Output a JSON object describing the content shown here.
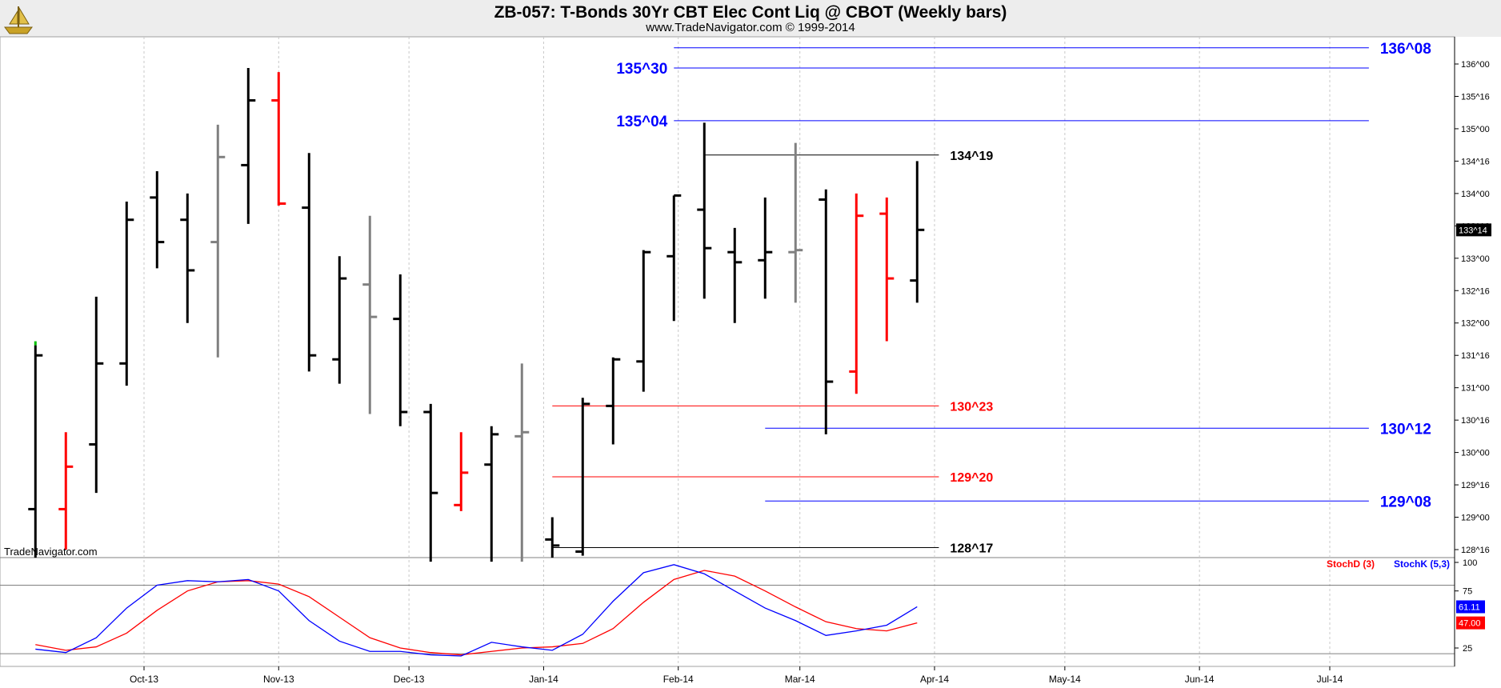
{
  "header": {
    "title": "ZB-057:  T-Bonds 30Yr CBT Elec Cont Liq @ CBOT  (Weekly bars)",
    "subtitle": "www.TradeNavigator.com © 1999-2014",
    "logo_icon": "trade-navigator-ship-icon"
  },
  "watermark": "TradeNavigator.com",
  "chart_data": [
    {
      "type": "ohlc",
      "price_format": "32nds",
      "ylim": [
        128.375,
        136.5
      ],
      "ytick_labels": [
        "128^16",
        "129^00",
        "129^16",
        "130^00",
        "130^16",
        "131^00",
        "131^16",
        "132^00",
        "132^16",
        "133^00",
        "133^16",
        "134^00",
        "134^16",
        "135^00",
        "135^16",
        "136^00"
      ],
      "ytick_values": [
        128.5,
        129.0,
        129.5,
        130.0,
        130.5,
        131.0,
        131.5,
        132.0,
        132.5,
        133.0,
        133.5,
        134.0,
        134.5,
        135.0,
        135.5,
        136.0
      ],
      "last_price_label": "133^14",
      "x_tick_labels": [
        "Oct-13",
        "Nov-13",
        "Dec-13",
        "Jan-14",
        "Feb-14",
        "Mar-14",
        "Apr-14",
        "May-14",
        "Jun-14",
        "Jul-14"
      ],
      "x_tick_dates": [
        "2013-10-01",
        "2013-11-01",
        "2013-12-01",
        "2014-01-01",
        "2014-02-01",
        "2014-03-01",
        "2014-04-01",
        "2014-05-01",
        "2014-06-01",
        "2014-07-01"
      ],
      "bar_color_legend": {
        "up": "#000000",
        "down": "#ff0000",
        "neutral": "#808080"
      },
      "bars": [
        {
          "date": "2013-09-06",
          "open": 129.125,
          "high": 131.656,
          "low": 128.375,
          "close": 131.5,
          "color": "#000000"
        },
        {
          "date": "2013-09-13",
          "open": 129.125,
          "high": 130.313,
          "low": 128.5,
          "close": 129.781,
          "color": "#ff0000"
        },
        {
          "date": "2013-09-20",
          "open": 130.125,
          "high": 132.406,
          "low": 129.375,
          "close": 131.375,
          "color": "#000000"
        },
        {
          "date": "2013-09-27",
          "open": 131.375,
          "high": 133.875,
          "low": 131.031,
          "close": 133.594,
          "color": "#000000"
        },
        {
          "date": "2013-10-04",
          "open": 133.938,
          "high": 134.344,
          "low": 132.844,
          "close": 133.25,
          "color": "#000000"
        },
        {
          "date": "2013-10-11",
          "open": 133.594,
          "high": 134.0,
          "low": 132.0,
          "close": 132.813,
          "color": "#000000"
        },
        {
          "date": "2013-10-18",
          "open": 133.25,
          "high": 135.063,
          "low": 131.469,
          "close": 134.563,
          "color": "#808080"
        },
        {
          "date": "2013-10-25",
          "open": 134.438,
          "high": 135.938,
          "low": 133.531,
          "close": 135.438,
          "color": "#000000"
        },
        {
          "date": "2013-11-01",
          "open": 135.438,
          "high": 135.875,
          "low": 133.813,
          "close": 133.844,
          "color": "#ff0000"
        },
        {
          "date": "2013-11-08",
          "open": 133.781,
          "high": 134.625,
          "low": 131.25,
          "close": 131.5,
          "color": "#000000"
        },
        {
          "date": "2013-11-15",
          "open": 131.438,
          "high": 133.031,
          "low": 131.063,
          "close": 132.688,
          "color": "#000000"
        },
        {
          "date": "2013-11-22",
          "open": 132.594,
          "high": 133.656,
          "low": 130.594,
          "close": 132.094,
          "color": "#808080"
        },
        {
          "date": "2013-11-29",
          "open": 132.063,
          "high": 132.75,
          "low": 130.406,
          "close": 130.625,
          "color": "#000000"
        },
        {
          "date": "2013-12-06",
          "open": 130.625,
          "high": 130.75,
          "low": 128.313,
          "close": 129.375,
          "color": "#000000"
        },
        {
          "date": "2013-12-13",
          "open": 129.188,
          "high": 130.313,
          "low": 129.094,
          "close": 129.688,
          "color": "#ff0000"
        },
        {
          "date": "2013-12-20",
          "open": 129.813,
          "high": 130.406,
          "low": 128.313,
          "close": 130.281,
          "color": "#000000"
        },
        {
          "date": "2013-12-27",
          "open": 130.25,
          "high": 131.375,
          "low": 128.313,
          "close": 130.313,
          "color": "#808080"
        },
        {
          "date": "2014-01-03",
          "open": 128.656,
          "high": 129.0,
          "low": 128.375,
          "close": 128.563,
          "color": "#000000"
        },
        {
          "date": "2014-01-10",
          "open": 128.469,
          "high": 130.844,
          "low": 128.406,
          "close": 130.75,
          "color": "#000000"
        },
        {
          "date": "2014-01-17",
          "open": 130.719,
          "high": 131.469,
          "low": 130.125,
          "close": 131.438,
          "color": "#000000"
        },
        {
          "date": "2014-01-24",
          "open": 131.406,
          "high": 133.125,
          "low": 130.938,
          "close": 133.094,
          "color": "#000000"
        },
        {
          "date": "2014-01-31",
          "open": 133.031,
          "high": 133.969,
          "low": 132.031,
          "close": 133.969,
          "color": "#000000"
        },
        {
          "date": "2014-02-07",
          "open": 133.75,
          "high": 135.094,
          "low": 132.375,
          "close": 133.156,
          "color": "#000000"
        },
        {
          "date": "2014-02-14",
          "open": 133.094,
          "high": 133.469,
          "low": 132.0,
          "close": 132.938,
          "color": "#000000"
        },
        {
          "date": "2014-02-21",
          "open": 132.969,
          "high": 133.938,
          "low": 132.375,
          "close": 133.094,
          "color": "#000000"
        },
        {
          "date": "2014-02-28",
          "open": 133.094,
          "high": 134.781,
          "low": 132.313,
          "close": 133.125,
          "color": "#808080"
        },
        {
          "date": "2014-03-07",
          "open": 133.906,
          "high": 134.063,
          "low": 130.281,
          "close": 131.094,
          "color": "#000000"
        },
        {
          "date": "2014-03-14",
          "open": 131.25,
          "high": 134.0,
          "low": 130.906,
          "close": 133.656,
          "color": "#ff0000"
        },
        {
          "date": "2014-03-21",
          "open": 133.688,
          "high": 133.938,
          "low": 131.719,
          "close": 132.688,
          "color": "#ff0000"
        },
        {
          "date": "2014-03-28",
          "open": 132.656,
          "high": 134.5,
          "low": 132.313,
          "close": 133.438,
          "color": "#000000"
        }
      ],
      "levels": [
        {
          "label": "136^08",
          "value": 136.25,
          "color": "#0000ff",
          "label_size": "large",
          "start_date": "2014-01-31",
          "end_date": "2014-07-10"
        },
        {
          "label": "135^30",
          "value": 135.938,
          "color": "#0000ff",
          "label_size": "large",
          "start_date": "2014-01-31",
          "end_date": "2014-07-10"
        },
        {
          "label": "135^04",
          "value": 135.125,
          "color": "#0000ff",
          "label_size": "large",
          "start_date": "2014-01-31",
          "end_date": "2014-07-10"
        },
        {
          "label": "134^19",
          "value": 134.594,
          "color": "#000000",
          "label_size": "normal",
          "start_date": "2014-02-07",
          "end_date": "2014-04-02"
        },
        {
          "label": "130^23",
          "value": 130.719,
          "color": "#ff0000",
          "label_size": "normal",
          "start_date": "2014-01-03",
          "end_date": "2014-04-02"
        },
        {
          "label": "130^12",
          "value": 130.375,
          "color": "#0000ff",
          "label_size": "large",
          "start_date": "2014-02-21",
          "end_date": "2014-07-10"
        },
        {
          "label": "129^20",
          "value": 129.625,
          "color": "#ff0000",
          "label_size": "normal",
          "start_date": "2014-01-03",
          "end_date": "2014-04-02"
        },
        {
          "label": "129^08",
          "value": 129.25,
          "color": "#0000ff",
          "label_size": "large",
          "start_date": "2014-02-21",
          "end_date": "2014-07-10"
        },
        {
          "label": "128^17",
          "value": 128.531,
          "color": "#000000",
          "label_size": "normal",
          "start_date": "2014-01-03",
          "end_date": "2014-04-02"
        }
      ]
    },
    {
      "type": "line",
      "ylim": [
        10,
        110
      ],
      "ytick_labels": [
        "25",
        "75",
        "100"
      ],
      "ytick_values": [
        25,
        75,
        100
      ],
      "reference_lines": [
        20,
        80
      ],
      "legend": [
        {
          "label": "StochD (3)",
          "color": "#ff0000"
        },
        {
          "label": "StochK (5,3)",
          "color": "#0000ff"
        }
      ],
      "value_labels": [
        {
          "text": "61.11",
          "color": "#0000ff",
          "value": 61.11
        },
        {
          "text": "47.00",
          "color": "#ff0000",
          "value": 47.0
        }
      ],
      "series": [
        {
          "name": "StochK (5,3)",
          "color": "#0000ff",
          "points": [
            [
              "2013-09-06",
              24
            ],
            [
              "2013-09-13",
              21
            ],
            [
              "2013-09-20",
              34
            ],
            [
              "2013-09-27",
              60
            ],
            [
              "2013-10-04",
              80
            ],
            [
              "2013-10-11",
              84
            ],
            [
              "2013-10-18",
              83
            ],
            [
              "2013-10-25",
              85
            ],
            [
              "2013-11-01",
              75
            ],
            [
              "2013-11-08",
              49
            ],
            [
              "2013-11-15",
              31
            ],
            [
              "2013-11-22",
              22
            ],
            [
              "2013-11-29",
              22
            ],
            [
              "2013-12-06",
              19
            ],
            [
              "2013-12-13",
              18
            ],
            [
              "2013-12-20",
              30
            ],
            [
              "2013-12-27",
              26
            ],
            [
              "2014-01-03",
              23
            ],
            [
              "2014-01-10",
              37
            ],
            [
              "2014-01-17",
              66
            ],
            [
              "2014-01-24",
              91
            ],
            [
              "2014-01-31",
              98
            ],
            [
              "2014-02-07",
              90
            ],
            [
              "2014-02-14",
              75
            ],
            [
              "2014-02-21",
              60
            ],
            [
              "2014-02-28",
              49
            ],
            [
              "2014-03-07",
              36
            ],
            [
              "2014-03-14",
              40
            ],
            [
              "2014-03-21",
              45
            ],
            [
              "2014-03-28",
              61.11
            ]
          ]
        },
        {
          "name": "StochD (3)",
          "color": "#ff0000",
          "points": [
            [
              "2013-09-06",
              28
            ],
            [
              "2013-09-13",
              23
            ],
            [
              "2013-09-20",
              26
            ],
            [
              "2013-09-27",
              38
            ],
            [
              "2013-10-04",
              58
            ],
            [
              "2013-10-11",
              75
            ],
            [
              "2013-10-18",
              83
            ],
            [
              "2013-10-25",
              84
            ],
            [
              "2013-11-01",
              81
            ],
            [
              "2013-11-08",
              70
            ],
            [
              "2013-11-15",
              52
            ],
            [
              "2013-11-22",
              34
            ],
            [
              "2013-11-29",
              25
            ],
            [
              "2013-12-06",
              21
            ],
            [
              "2013-12-13",
              19
            ],
            [
              "2013-12-20",
              22
            ],
            [
              "2013-12-27",
              25
            ],
            [
              "2014-01-03",
              26
            ],
            [
              "2014-01-10",
              29
            ],
            [
              "2014-01-17",
              42
            ],
            [
              "2014-01-24",
              65
            ],
            [
              "2014-01-31",
              85
            ],
            [
              "2014-02-07",
              93
            ],
            [
              "2014-02-14",
              88
            ],
            [
              "2014-02-21",
              75
            ],
            [
              "2014-02-28",
              61
            ],
            [
              "2014-03-07",
              48
            ],
            [
              "2014-03-14",
              42
            ],
            [
              "2014-03-21",
              40
            ],
            [
              "2014-03-28",
              47
            ]
          ]
        }
      ]
    }
  ]
}
